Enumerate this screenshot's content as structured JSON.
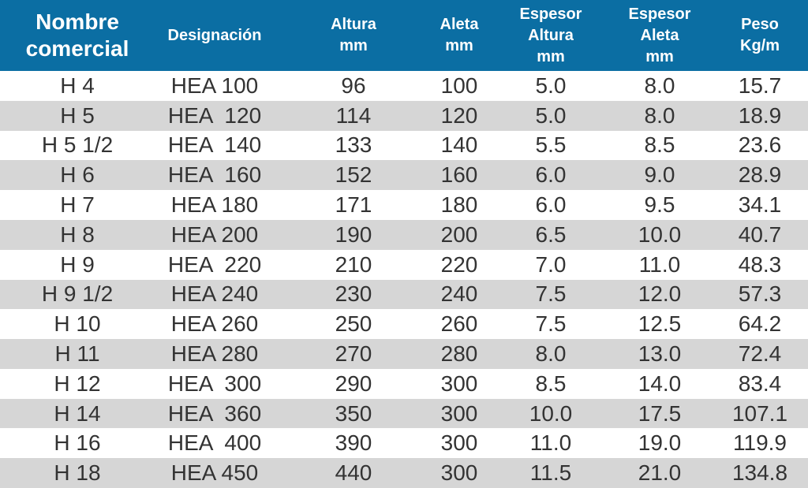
{
  "table": {
    "header": [
      "Nombre\ncomercial",
      "Designación",
      "Altura\nmm",
      "Aleta\nmm",
      "Espesor\nAltura\nmm",
      "Espesor\nAleta\nmm",
      "Peso\nKg/m"
    ],
    "rows": [
      [
        "H 4",
        "HEA 100",
        "96",
        "100",
        "5.0",
        "8.0",
        "15.7"
      ],
      [
        "H 5",
        "HEA  120",
        "114",
        "120",
        "5.0",
        "8.0",
        "18.9"
      ],
      [
        "H 5 1/2",
        "HEA  140",
        "133",
        "140",
        "5.5",
        "8.5",
        "23.6"
      ],
      [
        "H 6",
        "HEA  160",
        "152",
        "160",
        "6.0",
        "9.0",
        "28.9"
      ],
      [
        "H 7",
        "HEA 180",
        "171",
        "180",
        "6.0",
        "9.5",
        "34.1"
      ],
      [
        "H 8",
        "HEA 200",
        "190",
        "200",
        "6.5",
        "10.0",
        "40.7"
      ],
      [
        "H 9",
        "HEA  220",
        "210",
        "220",
        "7.0",
        "11.0",
        "48.3"
      ],
      [
        "H 9 1/2",
        "HEA 240",
        "230",
        "240",
        "7.5",
        "12.0",
        "57.3"
      ],
      [
        "H 10",
        "HEA 260",
        "250",
        "260",
        "7.5",
        "12.5",
        "64.2"
      ],
      [
        "H 11",
        "HEA 280",
        "270",
        "280",
        "8.0",
        "13.0",
        "72.4"
      ],
      [
        "H 12",
        "HEA  300",
        "290",
        "300",
        "8.5",
        "14.0",
        "83.4"
      ],
      [
        "H 14",
        "HEA  360",
        "350",
        "300",
        "10.0",
        "17.5",
        "107.1"
      ],
      [
        "H 16",
        "HEA  400",
        "390",
        "300",
        "11.0",
        "19.0",
        "119.9"
      ],
      [
        "H 18",
        "HEA 450",
        "440",
        "300",
        "11.5",
        "21.0",
        "134.8"
      ]
    ]
  }
}
